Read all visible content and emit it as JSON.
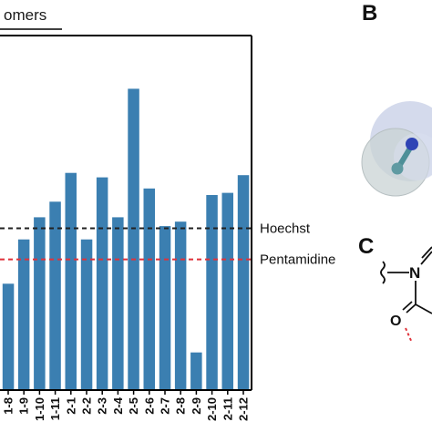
{
  "panels": {
    "header_fragment": "omers",
    "letter_b": "B",
    "letter_c": "C",
    "molecule_o_label": "O"
  },
  "colors": {
    "bar": "#3b7fb1",
    "hoechst_line": "#222222",
    "pentamidine_line": "#e0323a",
    "axis": "#000000"
  },
  "chart_data": {
    "type": "bar",
    "categories": [
      "1-8",
      "1-9",
      "1-10",
      "1-11",
      "2-1",
      "2-2",
      "2-3",
      "2-4",
      "2-5",
      "2-6",
      "2-7",
      "2-8",
      "2-9",
      "2-10",
      "2-11",
      "2-12"
    ],
    "values": [
      4.8,
      6.8,
      7.8,
      8.5,
      9.8,
      6.8,
      9.6,
      7.8,
      13.6,
      9.1,
      7.4,
      7.6,
      1.7,
      8.8,
      8.9,
      9.7
    ],
    "reference_lines": [
      {
        "name": "Hoechst",
        "value": 7.3,
        "style": "dashed"
      },
      {
        "name": "Pentamidine",
        "value": 5.9,
        "style": "dashed"
      }
    ],
    "ylim": [
      0,
      16
    ],
    "title": "",
    "xlabel": "",
    "ylabel": "",
    "grid": false
  }
}
